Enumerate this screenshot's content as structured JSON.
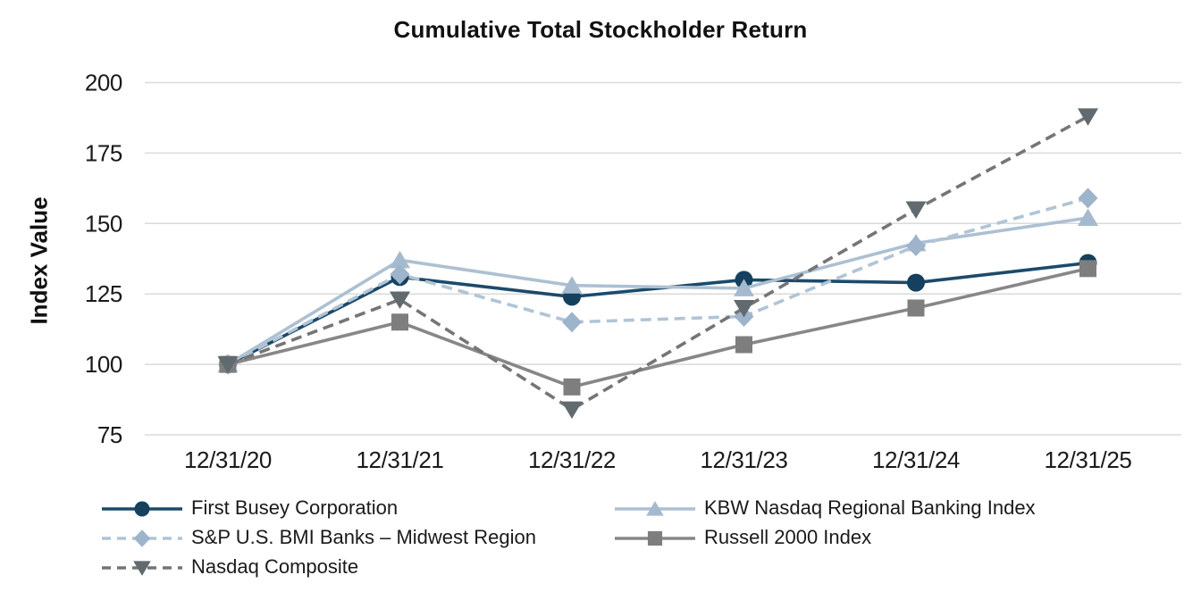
{
  "chart_data": {
    "type": "line",
    "title": "Cumulative Total Stockholder Return",
    "xlabel": "",
    "ylabel": "Index Value",
    "categories": [
      "12/31/20",
      "12/31/21",
      "12/31/22",
      "12/31/23",
      "12/31/24",
      "12/31/25"
    ],
    "ylim": [
      75,
      200
    ],
    "yticks": [
      200,
      175,
      150,
      125,
      100,
      75
    ],
    "grid": true,
    "legend_position": "bottom",
    "series": [
      {
        "name": "First Busey Corporation",
        "values": [
          100,
          131,
          124,
          130,
          129,
          136
        ],
        "marker": "circle",
        "line_style": "solid",
        "line_color": "#1C4A6B",
        "marker_color": "#15405E"
      },
      {
        "name": "KBW Nasdaq Regional Banking Index",
        "values": [
          100,
          137,
          128,
          127,
          143,
          152
        ],
        "marker": "triangle-up",
        "line_style": "solid",
        "line_color": "#ACC0D2",
        "marker_color": "#A5BACE"
      },
      {
        "name": "S&P U.S. BMI Banks – Midwest Region",
        "values": [
          100,
          132,
          115,
          117,
          142,
          159
        ],
        "marker": "diamond",
        "line_style": "dashed",
        "line_color": "#B0C4D6",
        "marker_color": "#9DB4CB"
      },
      {
        "name": "Russell 2000 Index",
        "values": [
          100,
          115,
          92,
          107,
          120,
          134
        ],
        "marker": "square",
        "line_style": "solid",
        "line_color": "#878787",
        "marker_color": "#7E7E7E"
      },
      {
        "name": "Nasdaq Composite",
        "values": [
          100,
          123,
          84,
          120,
          155,
          188
        ],
        "marker": "triangle-down",
        "line_style": "dashed",
        "line_color": "#757575",
        "marker_color": "#616A6E"
      }
    ]
  },
  "colors": {
    "background": "#FFFFFF",
    "gridline": "#DADADA",
    "text": "#1A1A1A"
  }
}
